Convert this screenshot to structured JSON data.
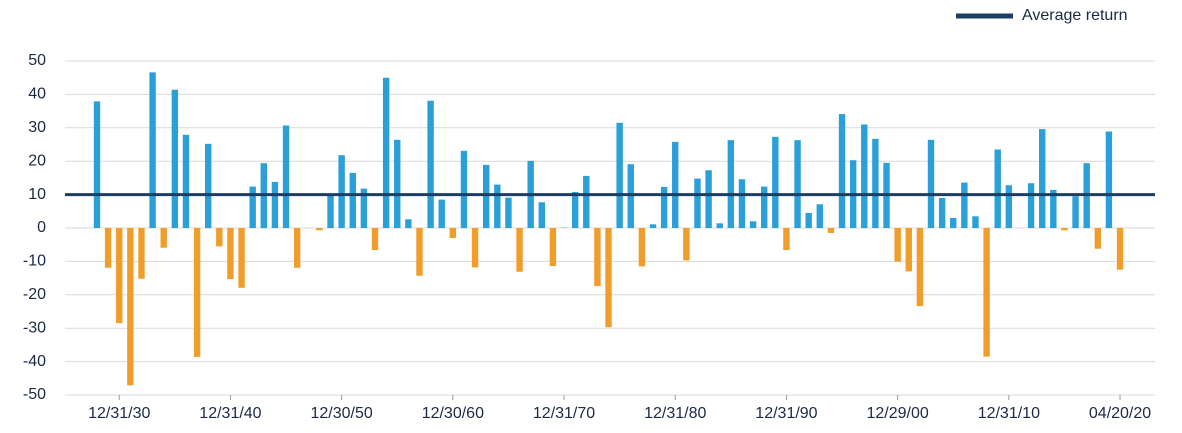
{
  "chart_data": {
    "type": "bar",
    "categories": [
      null,
      null,
      "12/31/30",
      null,
      null,
      null,
      null,
      null,
      null,
      null,
      null,
      null,
      "12/31/40",
      null,
      null,
      null,
      null,
      null,
      null,
      null,
      null,
      null,
      "12/30/50",
      null,
      null,
      null,
      null,
      null,
      null,
      null,
      null,
      null,
      "12/30/60",
      null,
      null,
      null,
      null,
      null,
      null,
      null,
      null,
      null,
      "12/31/70",
      null,
      null,
      null,
      null,
      null,
      null,
      null,
      null,
      null,
      "12/31/80",
      null,
      null,
      null,
      null,
      null,
      null,
      null,
      null,
      null,
      "12/31/90",
      null,
      null,
      null,
      null,
      null,
      null,
      null,
      null,
      null,
      "12/29/00",
      null,
      null,
      null,
      null,
      null,
      null,
      null,
      null,
      null,
      "12/31/10",
      null,
      null,
      null,
      null,
      null,
      null,
      null,
      null,
      null,
      "04/20/20"
    ],
    "values": [
      37.9,
      -11.9,
      -28.5,
      -47.1,
      -15.2,
      46.6,
      -5.9,
      41.4,
      27.9,
      -38.6,
      25.2,
      -5.5,
      -15.3,
      -17.9,
      12.4,
      19.4,
      13.8,
      30.7,
      -11.9,
      0,
      -0.7,
      10.3,
      21.8,
      16.5,
      11.8,
      -6.6,
      45.0,
      26.4,
      2.6,
      -14.3,
      38.1,
      8.5,
      -3.0,
      23.1,
      -11.8,
      18.9,
      13.0,
      9.1,
      -13.1,
      20.1,
      7.7,
      -11.4,
      0.1,
      10.8,
      15.6,
      -17.4,
      -29.7,
      31.5,
      19.1,
      -11.5,
      1.1,
      12.3,
      25.8,
      -9.7,
      14.8,
      17.3,
      1.4,
      26.3,
      14.6,
      2.0,
      12.4,
      27.3,
      -6.6,
      26.3,
      4.5,
      7.1,
      -1.5,
      34.1,
      20.3,
      31.0,
      26.7,
      19.5,
      -10.1,
      -13.0,
      -23.4,
      26.4,
      9.0,
      3.0,
      13.6,
      3.5,
      -38.5,
      23.5,
      12.8,
      0,
      13.4,
      29.6,
      11.4,
      -0.7,
      9.5,
      19.4,
      -6.2,
      28.9,
      -12.5
    ],
    "color": "#2a9fd8",
    "negative_color": "#f19d2c",
    "reference_line": {
      "name": "Average return",
      "value": 10,
      "color": "#1c3e63"
    },
    "ylim": [
      -50,
      50
    ],
    "yticks": [
      -50,
      -40,
      -30,
      -20,
      -10,
      0,
      10,
      20,
      30,
      40,
      50
    ],
    "grid": true,
    "legend": "top-right"
  }
}
